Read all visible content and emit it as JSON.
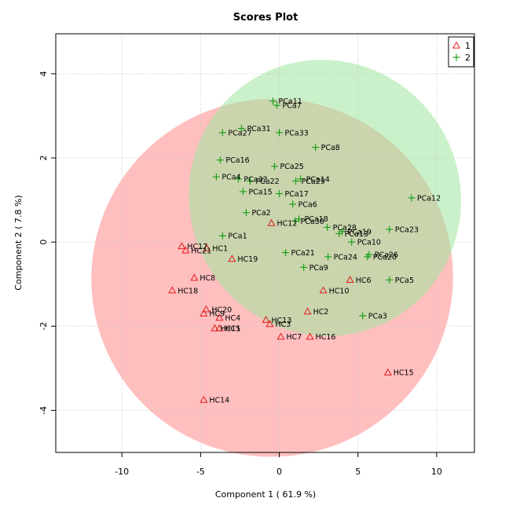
{
  "chart_data": {
    "type": "scatter",
    "title": "Scores Plot",
    "xlabel": "Component 1 ( 61.9 %)",
    "ylabel": "Component 2 ( 7.8 %)",
    "xlim": [
      -14.2,
      12.4
    ],
    "ylim": [
      -5.0,
      4.95
    ],
    "xticks": [
      -10,
      -5,
      0,
      5,
      10
    ],
    "yticks": [
      -4,
      -2,
      0,
      2,
      4
    ],
    "grid": true,
    "legend_position": "top-right",
    "series": [
      {
        "name": "1",
        "marker": "triangle",
        "color": "#e31a1c",
        "ellipse": {
          "cx": -0.45,
          "cy": -0.85,
          "rx": 11.5,
          "ry": 4.25,
          "angle_deg": -15,
          "fill": "#ff8080"
        },
        "points": [
          {
            "label": "HC1",
            "x": -4.6,
            "y": -0.15
          },
          {
            "label": "HC2",
            "x": 1.8,
            "y": -1.65
          },
          {
            "label": "HC3",
            "x": -0.6,
            "y": -1.95
          },
          {
            "label": "HC4",
            "x": -3.8,
            "y": -1.8
          },
          {
            "label": "HC5",
            "x": -3.8,
            "y": -2.05
          },
          {
            "label": "HC6",
            "x": 4.5,
            "y": -0.9
          },
          {
            "label": "HC7",
            "x": 0.1,
            "y": -2.25
          },
          {
            "label": "HC8",
            "x": -5.4,
            "y": -0.85
          },
          {
            "label": "HC9",
            "x": -4.8,
            "y": -1.7
          },
          {
            "label": "HC10",
            "x": 2.8,
            "y": -1.15
          },
          {
            "label": "HC11",
            "x": -4.1,
            "y": -2.05
          },
          {
            "label": "HC12",
            "x": -0.5,
            "y": 0.45
          },
          {
            "label": "HC13",
            "x": -0.85,
            "y": -1.85
          },
          {
            "label": "HC14",
            "x": -4.8,
            "y": -3.75
          },
          {
            "label": "HC15",
            "x": 6.9,
            "y": -3.1
          },
          {
            "label": "HC16",
            "x": 1.95,
            "y": -2.25
          },
          {
            "label": "HC17",
            "x": -6.2,
            "y": -0.1
          },
          {
            "label": "HC18",
            "x": -6.8,
            "y": -1.15
          },
          {
            "label": "HC19",
            "x": -3.0,
            "y": -0.4
          },
          {
            "label": "HC20",
            "x": -4.65,
            "y": -1.6
          },
          {
            "label": "HC21",
            "x": -5.95,
            "y": -0.2
          }
        ]
      },
      {
        "name": "2",
        "marker": "plus",
        "color": "#1aa01a",
        "ellipse": {
          "cx": 2.9,
          "cy": 1.05,
          "rx": 8.6,
          "ry": 3.3,
          "angle_deg": -28,
          "fill": "#9ee69e"
        },
        "points": [
          {
            "label": "PCa1",
            "x": -3.6,
            "y": 0.15
          },
          {
            "label": "PCa2",
            "x": -2.1,
            "y": 0.7
          },
          {
            "label": "PCa3",
            "x": 5.3,
            "y": -1.75
          },
          {
            "label": "PCa4",
            "x": -4.0,
            "y": 1.55
          },
          {
            "label": "PCa5",
            "x": 7.0,
            "y": -0.9
          },
          {
            "label": "PCa6",
            "x": 0.85,
            "y": 0.9
          },
          {
            "label": "PCa7",
            "x": -0.15,
            "y": 3.25
          },
          {
            "label": "PCa8",
            "x": 2.3,
            "y": 2.25
          },
          {
            "label": "PCa9",
            "x": 1.55,
            "y": -0.6
          },
          {
            "label": "PCa10",
            "x": 4.6,
            "y": 0.0
          },
          {
            "label": "PCa11",
            "x": -0.4,
            "y": 3.35
          },
          {
            "label": "PCa12",
            "x": 8.4,
            "y": 1.05
          },
          {
            "label": "PCa13",
            "x": 3.8,
            "y": 0.2
          },
          {
            "label": "PCa14",
            "x": 1.35,
            "y": 1.5
          },
          {
            "label": "PCa15",
            "x": -2.3,
            "y": 1.2
          },
          {
            "label": "PCa16",
            "x": -3.75,
            "y": 1.95
          },
          {
            "label": "PCa17",
            "x": 0.0,
            "y": 1.15
          },
          {
            "label": "PCa18",
            "x": 1.25,
            "y": 0.55
          },
          {
            "label": "PCa19",
            "x": 4.0,
            "y": 0.25
          },
          {
            "label": "PCa20",
            "x": 5.6,
            "y": -0.35
          },
          {
            "label": "PCa21",
            "x": 0.4,
            "y": -0.25
          },
          {
            "label": "PCa22",
            "x": -1.85,
            "y": 1.45
          },
          {
            "label": "PCa23",
            "x": 7.0,
            "y": 0.3
          },
          {
            "label": "PCa24",
            "x": 3.1,
            "y": -0.35
          },
          {
            "label": "PCa25",
            "x": -0.3,
            "y": 1.8
          },
          {
            "label": "PCa26",
            "x": 5.7,
            "y": -0.3
          },
          {
            "label": "PCa27",
            "x": -3.6,
            "y": 2.6
          },
          {
            "label": "PCa28",
            "x": 3.05,
            "y": 0.35
          },
          {
            "label": "PCa29",
            "x": 1.05,
            "y": 1.45
          },
          {
            "label": "PCa30",
            "x": 1.0,
            "y": 0.5
          },
          {
            "label": "PCa31",
            "x": -2.4,
            "y": 2.7
          },
          {
            "label": "PCa32",
            "x": -2.6,
            "y": 1.5
          },
          {
            "label": "PCa33",
            "x": 0.0,
            "y": 2.6
          }
        ]
      }
    ]
  }
}
